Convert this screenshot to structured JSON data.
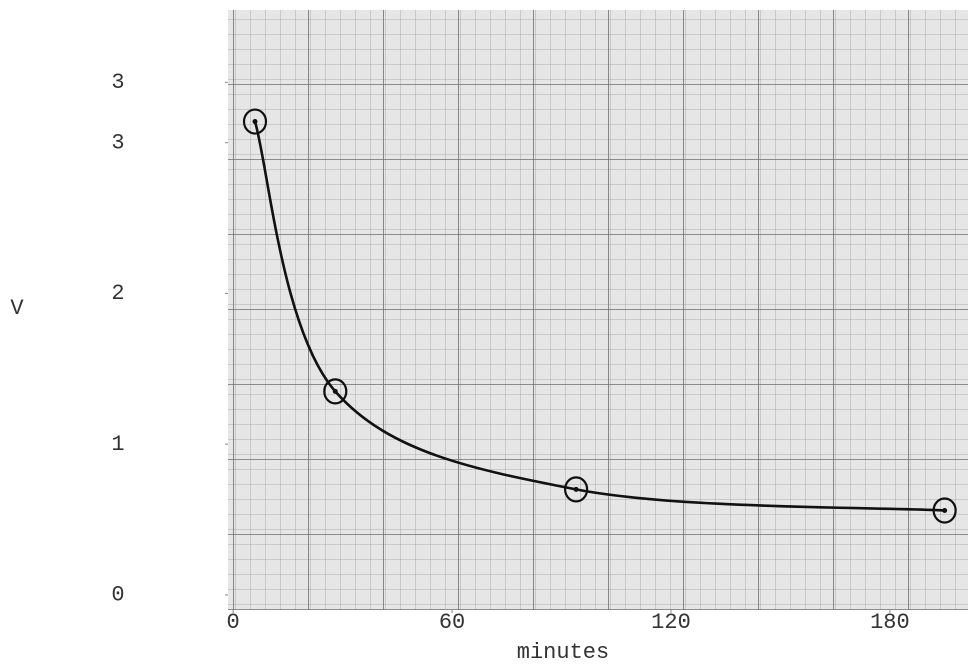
{
  "chart_data": {
    "type": "line",
    "x_label": "minutes",
    "y_label": "V",
    "xlim": [
      -1.4,
      201.4
    ],
    "xticks": [
      0,
      60,
      120,
      180
    ],
    "ylim": [
      -0.1,
      3.88
    ],
    "yticks": [
      0,
      1,
      2,
      3,
      {
        "value": 3.4,
        "label": "3"
      }
    ],
    "series": [
      {
        "color": "#111111",
        "x": [
          6,
          28,
          94,
          195
        ],
        "values": [
          3.14,
          1.35,
          0.7,
          0.56
        ]
      }
    ]
  }
}
